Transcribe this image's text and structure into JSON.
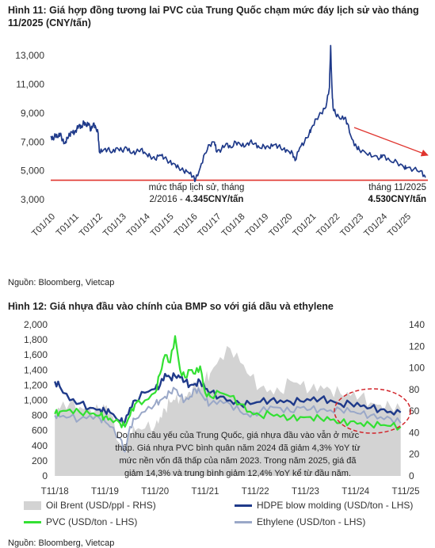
{
  "chart_data": [
    {
      "type": "line",
      "title": "Hình 11: Giá hợp đồng tương lai PVC của Trung Quốc chạm mức đáy lịch sử vào tháng 11/2025 (CNY/tấn)",
      "title_line1": "Hình 11: Giá hợp đồng tương lai PVC của Trung Quốc chạm mức đáy lịch sử vào tháng",
      "title_line2": "11/2025 (CNY/tấn)",
      "x_labels": [
        "T01/10",
        "T01/11",
        "T01/12",
        "T01/13",
        "T01/14",
        "T01/15",
        "T01/16",
        "T01/17",
        "T01/18",
        "T01/19",
        "T01/20",
        "T01/21",
        "T01/22",
        "T01/23",
        "T01/24",
        "T01/25"
      ],
      "y_ticks": [
        "3,000",
        "5,000",
        "7,000",
        "9,000",
        "11,000",
        "13,000"
      ],
      "ylim": [
        3000,
        14000
      ],
      "reference_line": {
        "value": 4345,
        "color": "#e0342e"
      },
      "annotations": {
        "low_line1": "mức thấp lịch sử, tháng",
        "low_line2_prefix": "2/2016 - ",
        "low_line2_bold": "4.345CNY/tấn",
        "nov_line1": "tháng 11/2025",
        "nov_line2_bold": "4.530CNY/tấn"
      },
      "series_color": "#1f3a8a",
      "series": [
        {
          "x": [
            2010.0,
            2010.1,
            2010.2,
            2010.3,
            2010.4,
            2010.5,
            2010.6,
            2010.7,
            2010.8,
            2010.9,
            2011.0,
            2011.1,
            2011.2,
            2011.3,
            2011.4,
            2011.5,
            2011.6,
            2011.7,
            2011.8,
            2011.9,
            2012.0,
            2012.05,
            2012.2,
            2012.4,
            2012.6,
            2012.8,
            2013.0,
            2013.2,
            2013.4,
            2013.6,
            2013.8,
            2014.0,
            2014.2,
            2014.4,
            2014.6,
            2014.8,
            2015.0,
            2015.2,
            2015.4,
            2015.6,
            2015.8,
            2016.0,
            2016.1,
            2016.3,
            2016.5,
            2016.7,
            2016.9,
            2017.0,
            2017.2,
            2017.4,
            2017.6,
            2017.8,
            2018.0,
            2018.2,
            2018.4,
            2018.6,
            2018.8,
            2019.0,
            2019.2,
            2019.4,
            2019.6,
            2019.8,
            2020.0,
            2020.2,
            2020.3,
            2020.5,
            2020.7,
            2020.9,
            2021.0,
            2021.2,
            2021.4,
            2021.6,
            2021.75,
            2021.8,
            2021.85,
            2021.9,
            2022.0,
            2022.2,
            2022.4,
            2022.5,
            2022.7,
            2022.9,
            2023.0,
            2023.3,
            2023.6,
            2023.9,
            2024.0,
            2024.3,
            2024.6,
            2024.9,
            2025.0,
            2025.3,
            2025.6,
            2025.8
          ],
          "y": [
            7400,
            7200,
            7500,
            7300,
            7600,
            7100,
            6900,
            7300,
            7500,
            7700,
            7600,
            7900,
            8200,
            8000,
            8400,
            8100,
            8300,
            7800,
            8300,
            8000,
            7600,
            6300,
            6400,
            6500,
            6300,
            6600,
            6400,
            6600,
            6200,
            6300,
            6500,
            6200,
            6000,
            5800,
            6100,
            5900,
            5600,
            5500,
            5200,
            5000,
            4900,
            4600,
            4345,
            5200,
            6200,
            6800,
            7000,
            6300,
            6500,
            6900,
            6600,
            7000,
            6800,
            6700,
            7000,
            6900,
            6600,
            6700,
            6600,
            6800,
            6700,
            6500,
            6400,
            6200,
            5700,
            6600,
            7000,
            7600,
            8000,
            8600,
            9000,
            9400,
            10800,
            13700,
            11000,
            9400,
            9000,
            8600,
            8700,
            8300,
            7200,
            6600,
            6500,
            6200,
            6000,
            5900,
            6100,
            5700,
            5600,
            5200,
            5200,
            5100,
            5000,
            4530
          ]
        }
      ],
      "source": "Nguồn: Bloomberg, Vietcap"
    },
    {
      "type": "line",
      "title": "Hình 12: Giá nhựa đầu vào chính của BMP so với giá dầu và ethylene",
      "x_labels": [
        "T11/18",
        "T11/19",
        "T11/20",
        "T11/21",
        "T11/22",
        "T11/23",
        "T11/24",
        "T11/25"
      ],
      "y_left_ticks": [
        "0",
        "200",
        "400",
        "600",
        "800",
        "1,000",
        "1,200",
        "1,400",
        "1,600",
        "1,800",
        "2,000"
      ],
      "y_right_ticks": [
        "0",
        "20",
        "40",
        "60",
        "80",
        "100",
        "120",
        "140"
      ],
      "ylim_left": [
        0,
        2000
      ],
      "ylim_right": [
        0,
        140
      ],
      "note_lines": [
        "Do nhu cầu yếu của Trung Quốc, giá nhựa đầu vào vẫn ở mức",
        "thấp. Giá nhựa PVC bình quân năm 2024 đã giảm 4,3% YoY từ",
        "mức nền vốn đã thấp của năm 2023. Trong năm 2025, giá đã",
        "giảm 14,3% và trung bình giảm 12,4% YoY kể từ đầu năm."
      ],
      "legend": [
        {
          "name": "Oil Brent (USD/ppl - RHS)",
          "color": "#d3d3d3",
          "kind": "area"
        },
        {
          "name": "HDPE blow molding (USD/ton - LHS)",
          "color": "#1f3a8a",
          "kind": "line"
        },
        {
          "name": "PVC (USD/ton - LHS)",
          "color": "#33e033",
          "kind": "line"
        },
        {
          "name": "Ethylene (USD/ton - LHS)",
          "color": "#9aa8c8",
          "kind": "line"
        }
      ],
      "x": [
        2018.9,
        2019.0,
        2019.2,
        2019.4,
        2019.6,
        2019.8,
        2019.9,
        2020.0,
        2020.2,
        2020.3,
        2020.4,
        2020.5,
        2020.7,
        2020.9,
        2021.0,
        2021.1,
        2021.2,
        2021.3,
        2021.4,
        2021.5,
        2021.6,
        2021.7,
        2021.8,
        2021.9,
        2022.0,
        2022.2,
        2022.4,
        2022.6,
        2022.8,
        2023.0,
        2023.2,
        2023.4,
        2023.6,
        2023.8,
        2024.0,
        2024.2,
        2024.4,
        2024.6,
        2024.8,
        2025.0,
        2025.2,
        2025.4,
        2025.6,
        2025.8
      ],
      "series": [
        {
          "name": "Oil Brent (USD/ppl - RHS)",
          "axis": "right",
          "values": [
            60,
            62,
            68,
            64,
            62,
            60,
            64,
            58,
            30,
            22,
            40,
            42,
            44,
            46,
            55,
            62,
            68,
            70,
            72,
            74,
            78,
            84,
            80,
            90,
            95,
            110,
            118,
            105,
            92,
            82,
            80,
            78,
            88,
            84,
            80,
            84,
            80,
            76,
            74,
            74,
            68,
            66,
            64,
            62
          ]
        },
        {
          "name": "HDPE blow molding (USD/ton - LHS)",
          "axis": "left",
          "values": [
            1250,
            1180,
            1000,
            960,
            900,
            880,
            860,
            840,
            720,
            720,
            900,
            1000,
            1100,
            1150,
            1200,
            1350,
            1300,
            1320,
            1300,
            1250,
            1200,
            1220,
            1250,
            1150,
            1100,
            1050,
            1000,
            950,
            950,
            980,
            1000,
            1000,
            980,
            990,
            1000,
            1020,
            1000,
            950,
            960,
            920,
            900,
            880,
            850,
            840
          ]
        },
        {
          "name": "PVC (USD/ton - LHS)",
          "axis": "left",
          "values": [
            820,
            850,
            880,
            840,
            820,
            800,
            780,
            760,
            700,
            650,
            800,
            950,
            1000,
            1100,
            1350,
            1600,
            1500,
            1850,
            1400,
            1300,
            1400,
            1350,
            1450,
            1100,
            1050,
            1100,
            1050,
            950,
            850,
            800,
            820,
            780,
            760,
            780,
            780,
            760,
            740,
            700,
            720,
            700,
            680,
            670,
            660,
            650
          ]
        },
        {
          "name": "Ethylene (USD/ton - LHS)",
          "axis": "left",
          "values": [
            800,
            780,
            780,
            750,
            800,
            760,
            720,
            650,
            500,
            320,
            650,
            750,
            850,
            950,
            1000,
            1050,
            1100,
            1150,
            1050,
            1000,
            1050,
            1150,
            1100,
            1000,
            950,
            1000,
            950,
            850,
            780,
            850,
            920,
            900,
            850,
            900,
            880,
            880,
            870,
            880,
            850,
            820,
            800,
            780,
            760,
            700
          ]
        }
      ],
      "source": "Nguồn: Bloomberg, Vietcap"
    }
  ]
}
